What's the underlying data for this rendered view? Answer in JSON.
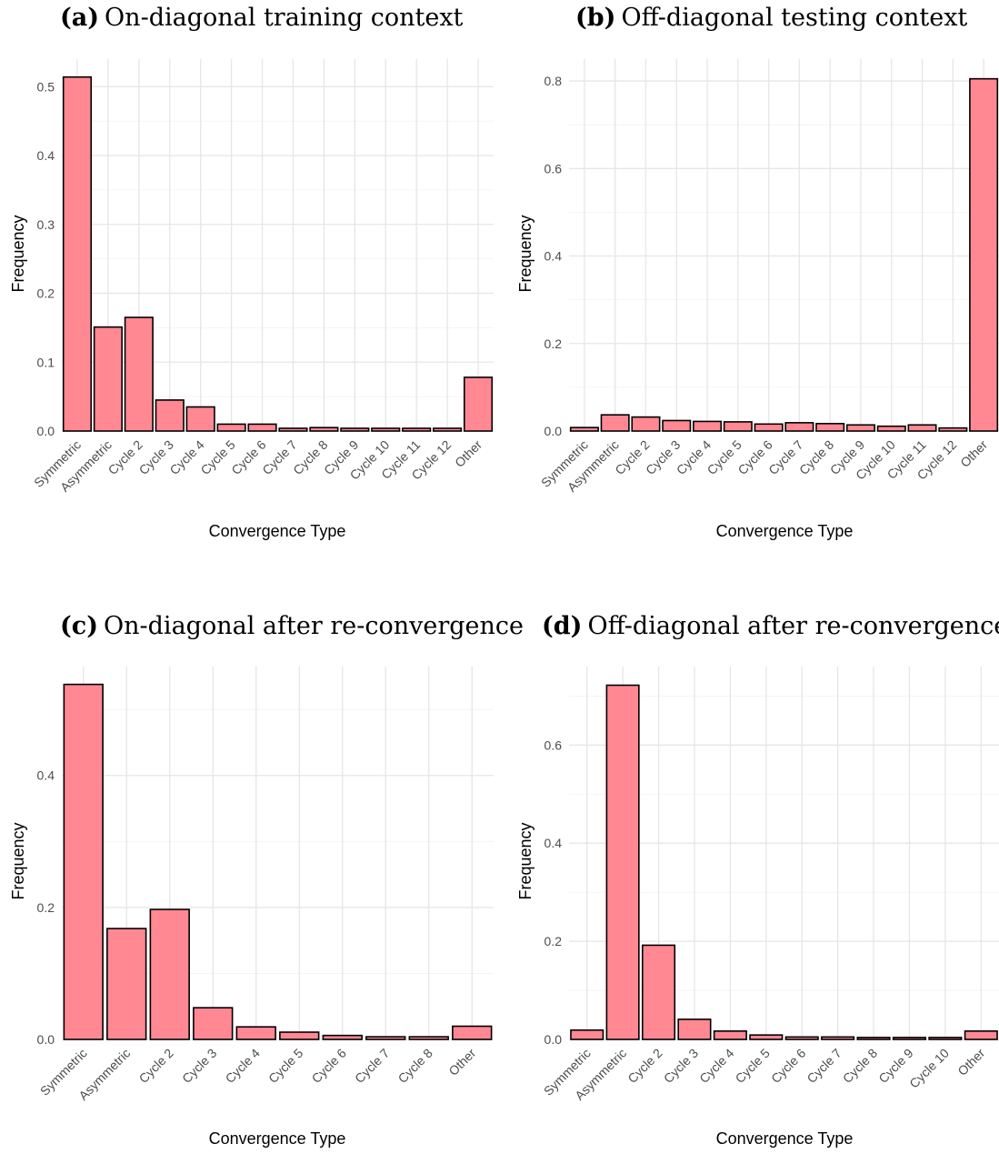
{
  "chart_data": [
    {
      "type": "bar",
      "panel_label": "(a)",
      "title": "On-diagonal training context",
      "xlabel": "Convergence Type",
      "ylabel": "Frequency",
      "categories": [
        "Symmetric",
        "Asymmetric",
        "Cycle 2",
        "Cycle 3",
        "Cycle 4",
        "Cycle 5",
        "Cycle 6",
        "Cycle 7",
        "Cycle 8",
        "Cycle 9",
        "Cycle 10",
        "Cycle 11",
        "Cycle 12",
        "Other"
      ],
      "values": [
        0.514,
        0.151,
        0.165,
        0.045,
        0.035,
        0.01,
        0.01,
        0.004,
        0.005,
        0.004,
        0.004,
        0.004,
        0.004,
        0.078
      ],
      "ylim": [
        0,
        0.54
      ],
      "yticks": [
        0.0,
        0.1,
        0.2,
        0.3,
        0.4,
        0.5
      ],
      "ytick_labels": [
        "0.0",
        "0.1",
        "0.2",
        "0.3",
        "0.4",
        "0.5"
      ],
      "bar_color": "#FF8893",
      "grid": true
    },
    {
      "type": "bar",
      "panel_label": "(b)",
      "title": "Off-diagonal testing context",
      "xlabel": "Convergence Type",
      "ylabel": "Frequency",
      "categories": [
        "Symmetric",
        "Asymmetric",
        "Cycle 2",
        "Cycle 3",
        "Cycle 4",
        "Cycle 5",
        "Cycle 6",
        "Cycle 7",
        "Cycle 8",
        "Cycle 9",
        "Cycle 10",
        "Cycle 11",
        "Cycle 12",
        "Other"
      ],
      "values": [
        0.008,
        0.037,
        0.032,
        0.024,
        0.022,
        0.021,
        0.016,
        0.019,
        0.017,
        0.014,
        0.011,
        0.014,
        0.007,
        0.805
      ],
      "ylim": [
        0,
        0.85
      ],
      "yticks": [
        0.0,
        0.2,
        0.4,
        0.6,
        0.8
      ],
      "ytick_labels": [
        "0.0",
        "0.2",
        "0.4",
        "0.6",
        "0.8"
      ],
      "bar_color": "#FF8893",
      "grid": true
    },
    {
      "type": "bar",
      "panel_label": "(c)",
      "title": "On-diagonal after re-convergence",
      "xlabel": "Convergence Type",
      "ylabel": "Frequency",
      "categories": [
        "Symmetric",
        "Asymmetric",
        "Cycle 2",
        "Cycle 3",
        "Cycle 4",
        "Cycle 5",
        "Cycle 6",
        "Cycle 7",
        "Cycle 8",
        "Other"
      ],
      "values": [
        0.538,
        0.168,
        0.197,
        0.048,
        0.019,
        0.011,
        0.006,
        0.004,
        0.004,
        0.02
      ],
      "ylim": [
        0,
        0.565
      ],
      "yticks": [
        0.0,
        0.2,
        0.4
      ],
      "ytick_labels": [
        "0.0",
        "0.2",
        "0.4"
      ],
      "bar_color": "#FF8893",
      "grid": true
    },
    {
      "type": "bar",
      "panel_label": "(d)",
      "title": "Off-diagonal after re-convergence",
      "xlabel": "Convergence Type",
      "ylabel": "Frequency",
      "categories": [
        "Symmetric",
        "Asymmetric",
        "Cycle 2",
        "Cycle 3",
        "Cycle 4",
        "Cycle 5",
        "Cycle 6",
        "Cycle 7",
        "Cycle 8",
        "Cycle 9",
        "Cycle 10",
        "Other"
      ],
      "values": [
        0.019,
        0.722,
        0.192,
        0.041,
        0.017,
        0.009,
        0.005,
        0.005,
        0.004,
        0.004,
        0.004,
        0.017
      ],
      "ylim": [
        0,
        0.76
      ],
      "yticks": [
        0.0,
        0.2,
        0.4,
        0.6
      ],
      "ytick_labels": [
        "0.0",
        "0.2",
        "0.4",
        "0.6"
      ],
      "bar_color": "#FF8893",
      "grid": true
    }
  ]
}
